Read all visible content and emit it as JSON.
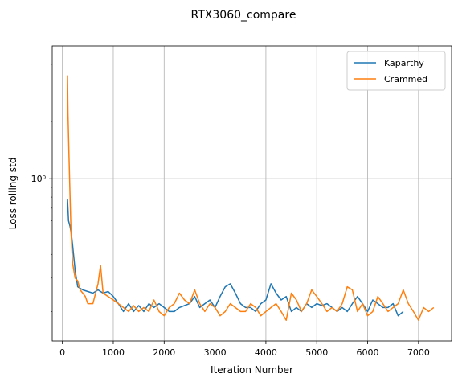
{
  "chart_data": {
    "type": "line",
    "title": "RTX3060_compare",
    "xlabel": "Iteration Number",
    "ylabel": "Loss rolling std",
    "xlim": [
      -200,
      7650
    ],
    "ylim": [
      0.14,
      5.0
    ],
    "yscale": "log",
    "grid": true,
    "legend_position": "top-right",
    "x_ticks": [
      0,
      1000,
      2000,
      3000,
      4000,
      5000,
      6000,
      7000
    ],
    "x_tick_labels": [
      "0",
      "1000",
      "2000",
      "3000",
      "4000",
      "5000",
      "6000",
      "7000"
    ],
    "y_major_ticks": [
      1.0
    ],
    "y_tick_labels": [
      "10⁰"
    ],
    "y_minor_ticks": [
      0.2,
      0.3,
      0.4,
      0.5,
      0.6,
      0.7,
      0.8,
      0.9,
      2,
      3,
      4
    ],
    "series": [
      {
        "name": "Kaparthy",
        "color": "#1f77b4",
        "x": [
          100,
          120,
          150,
          180,
          200,
          250,
          300,
          400,
          500,
          600,
          700,
          800,
          900,
          1000,
          1100,
          1200,
          1300,
          1400,
          1500,
          1600,
          1700,
          1800,
          1900,
          2000,
          2100,
          2200,
          2300,
          2400,
          2500,
          2600,
          2700,
          2800,
          2900,
          3000,
          3100,
          3200,
          3300,
          3400,
          3500,
          3600,
          3700,
          3800,
          3900,
          4000,
          4100,
          4200,
          4300,
          4400,
          4500,
          4600,
          4700,
          4800,
          4900,
          5000,
          5100,
          5200,
          5300,
          5400,
          5500,
          5600,
          5700,
          5800,
          5900,
          6000,
          6100,
          6200,
          6300,
          6400,
          6500,
          6600,
          6700
        ],
        "y": [
          0.78,
          0.6,
          0.56,
          0.5,
          0.45,
          0.33,
          0.27,
          0.26,
          0.255,
          0.25,
          0.26,
          0.25,
          0.255,
          0.24,
          0.22,
          0.2,
          0.22,
          0.2,
          0.215,
          0.2,
          0.22,
          0.21,
          0.22,
          0.21,
          0.2,
          0.2,
          0.21,
          0.215,
          0.22,
          0.24,
          0.21,
          0.22,
          0.23,
          0.21,
          0.24,
          0.27,
          0.28,
          0.25,
          0.22,
          0.21,
          0.21,
          0.2,
          0.22,
          0.23,
          0.28,
          0.25,
          0.23,
          0.24,
          0.2,
          0.21,
          0.2,
          0.22,
          0.21,
          0.22,
          0.215,
          0.22,
          0.21,
          0.2,
          0.21,
          0.2,
          0.22,
          0.24,
          0.22,
          0.2,
          0.23,
          0.22,
          0.21,
          0.21,
          0.22,
          0.19,
          0.2
        ]
      },
      {
        "name": "Crammed",
        "color": "#ff7f0e",
        "x": [
          100,
          110,
          130,
          150,
          170,
          200,
          250,
          300,
          350,
          400,
          450,
          500,
          600,
          700,
          750,
          800,
          900,
          1000,
          1100,
          1200,
          1300,
          1400,
          1500,
          1600,
          1700,
          1800,
          1900,
          2000,
          2100,
          2200,
          2300,
          2400,
          2500,
          2600,
          2700,
          2800,
          2900,
          3000,
          3100,
          3200,
          3300,
          3400,
          3500,
          3600,
          3700,
          3800,
          3900,
          4000,
          4100,
          4200,
          4300,
          4400,
          4500,
          4600,
          4700,
          4800,
          4900,
          5000,
          5100,
          5200,
          5300,
          5400,
          5500,
          5600,
          5700,
          5800,
          5900,
          6000,
          6100,
          6200,
          6300,
          6400,
          6500,
          6600,
          6700,
          6800,
          6900,
          7000,
          7100,
          7200,
          7300
        ],
        "y": [
          3.5,
          2.2,
          1.3,
          0.8,
          0.52,
          0.36,
          0.3,
          0.29,
          0.26,
          0.25,
          0.24,
          0.22,
          0.22,
          0.28,
          0.35,
          0.25,
          0.24,
          0.23,
          0.22,
          0.21,
          0.2,
          0.215,
          0.2,
          0.21,
          0.2,
          0.23,
          0.2,
          0.19,
          0.21,
          0.22,
          0.25,
          0.23,
          0.22,
          0.26,
          0.22,
          0.2,
          0.22,
          0.21,
          0.19,
          0.2,
          0.22,
          0.21,
          0.2,
          0.2,
          0.22,
          0.21,
          0.19,
          0.2,
          0.21,
          0.22,
          0.2,
          0.18,
          0.25,
          0.23,
          0.2,
          0.22,
          0.26,
          0.24,
          0.22,
          0.2,
          0.21,
          0.2,
          0.22,
          0.27,
          0.26,
          0.2,
          0.22,
          0.19,
          0.2,
          0.24,
          0.22,
          0.2,
          0.21,
          0.22,
          0.26,
          0.22,
          0.2,
          0.18,
          0.21,
          0.2,
          0.21
        ]
      }
    ]
  }
}
